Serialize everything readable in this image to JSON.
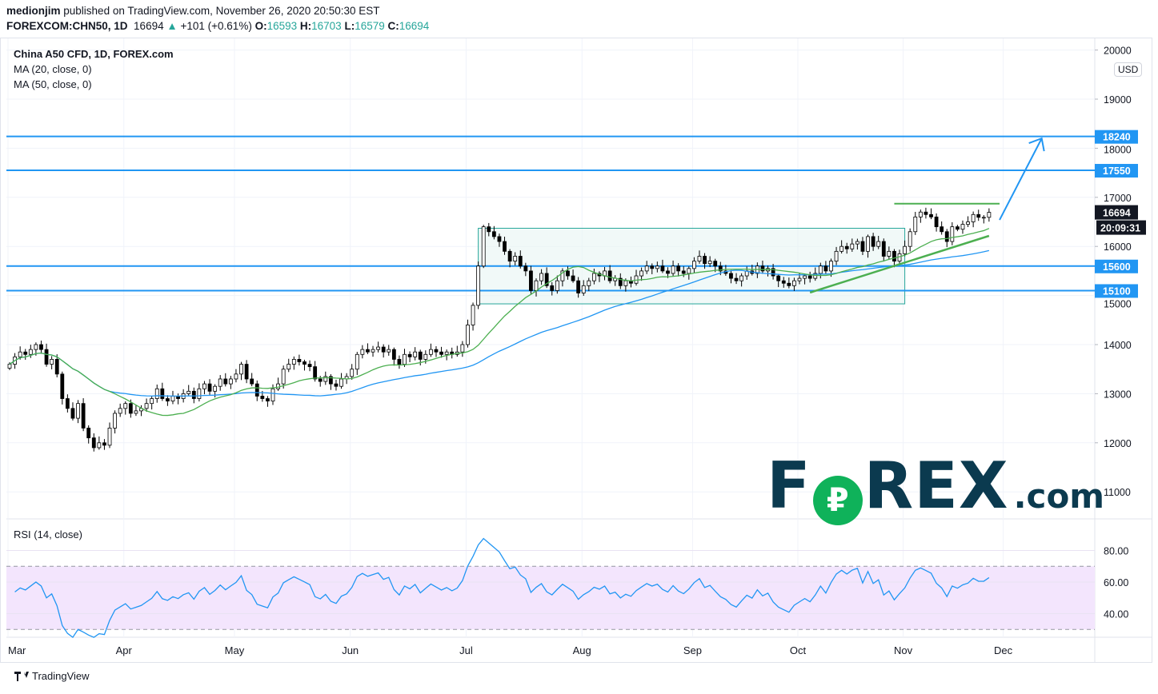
{
  "header": {
    "author": "medionjim",
    "published_text": "published on TradingView.com, November 26, 2020 20:50:30 EST",
    "symbol": "FOREXCOM:CHN50, 1D",
    "last": "16694",
    "change": "+101 (+0.61%)",
    "o_label": "O:",
    "o": "16593",
    "h_label": "H:",
    "h": "16703",
    "l_label": "L:",
    "l": "16579",
    "c_label": "C:",
    "c": "16694"
  },
  "legend": {
    "title": "China A50 CFD, 1D, FOREX.com",
    "ma20": "MA (20, close, 0)",
    "ma50": "MA (50, close, 0)",
    "rsi": "RSI (14, close)"
  },
  "currency": "USD",
  "countdown": "20:09:31",
  "footer": {
    "brand": "TradingView"
  },
  "watermark": {
    "f": "F",
    "o": "₽",
    "rex": "REX",
    "com": ".com"
  },
  "colors": {
    "up_body": "#ffffff",
    "down_body": "#000000",
    "ma20": "#4caf50",
    "ma50": "#2196f3",
    "hline": "#2196f3",
    "rsi_line": "#2196f3",
    "rsi_band": "#f3e5fd",
    "box_fill": "#e8f5f3",
    "box_stroke": "#26a69a",
    "last_price_bg": "#131722",
    "logo_dark": "#0b3a4f",
    "logo_green": "#0fb25a"
  },
  "chart_data": {
    "type": "candlestick",
    "price_axis": {
      "ticks": [
        11000,
        12000,
        13000,
        14000,
        15000,
        16000,
        17000,
        18000,
        19000,
        20000
      ],
      "visible_range": [
        10500,
        20000
      ]
    },
    "rsi_axis": {
      "ticks": [
        "40.00",
        "60.00",
        "80.00"
      ],
      "band": [
        30,
        70
      ],
      "range": [
        20,
        95
      ]
    },
    "time_axis": [
      {
        "label": "Mar",
        "bar": 0
      },
      {
        "label": "Apr",
        "bar": 22
      },
      {
        "label": "May",
        "bar": 43
      },
      {
        "label": "Jun",
        "bar": 65
      },
      {
        "label": "Jul",
        "bar": 87
      },
      {
        "label": "Aug",
        "bar": 109
      },
      {
        "label": "Sep",
        "bar": 130
      },
      {
        "label": "Oct",
        "bar": 150
      },
      {
        "label": "Nov",
        "bar": 170
      },
      {
        "label": "Dec",
        "bar": 189
      }
    ],
    "closes": [
      13600,
      13750,
      13850,
      13800,
      13900,
      14000,
      13900,
      13600,
      13700,
      13400,
      12900,
      12700,
      12500,
      12800,
      12300,
      12100,
      11900,
      12000,
      11950,
      12300,
      12600,
      12700,
      12800,
      12600,
      12650,
      12700,
      12800,
      12900,
      13100,
      12900,
      12850,
      12950,
      12900,
      13000,
      13050,
      12900,
      13100,
      13200,
      13050,
      13150,
      13300,
      13200,
      13300,
      13400,
      13600,
      13300,
      13200,
      12950,
      12900,
      12850,
      13100,
      13200,
      13500,
      13600,
      13700,
      13650,
      13600,
      13550,
      13300,
      13250,
      13350,
      13200,
      13150,
      13300,
      13350,
      13500,
      13800,
      13900,
      13850,
      13900,
      13950,
      13850,
      13900,
      13700,
      13600,
      13800,
      13750,
      13850,
      13700,
      13800,
      13900,
      13850,
      13800,
      13850,
      13800,
      13850,
      14000,
      14400,
      14800,
      15600,
      16400,
      16300,
      16200,
      16100,
      15900,
      15700,
      15800,
      15600,
      15500,
      15100,
      15300,
      15450,
      15200,
      15100,
      15300,
      15500,
      15400,
      15300,
      15050,
      15200,
      15300,
      15450,
      15400,
      15500,
      15300,
      15350,
      15200,
      15300,
      15250,
      15400,
      15500,
      15600,
      15550,
      15600,
      15500,
      15450,
      15600,
      15500,
      15450,
      15550,
      15700,
      15800,
      15650,
      15700,
      15600,
      15500,
      15450,
      15350,
      15300,
      15400,
      15500,
      15450,
      15600,
      15500,
      15550,
      15400,
      15300,
      15250,
      15200,
      15300,
      15350,
      15400,
      15350,
      15450,
      15600,
      15500,
      15700,
      15900,
      16000,
      15950,
      16050,
      16100,
      15900,
      16200,
      16000,
      16100,
      15800,
      15900,
      15700,
      15850,
      16000,
      16300,
      16600,
      16700,
      16650,
      16600,
      16400,
      16300,
      16100,
      16400,
      16350,
      16450,
      16500,
      16650,
      16593,
      16593,
      16694
    ],
    "last_open": 16593,
    "horizontal_levels": [
      18240,
      17550,
      15600,
      15100
    ],
    "last_price_label": "16694",
    "level_labels": [
      "18240",
      "17550",
      "15600",
      "15100"
    ],
    "range_box": {
      "from_bar": 89,
      "to_bar": 170,
      "top": 16370,
      "bottom": 14830
    },
    "resistance_line": {
      "from_bar": 168,
      "to_bar": 188,
      "price": 16870
    },
    "trend_line": {
      "from_bar": 152,
      "from_price": 15060,
      "to_bar": 186,
      "to_price": 16215
    },
    "projection_arrow": {
      "from_bar": 188,
      "from_price": 16540,
      "to_bar": 196,
      "to_price": 18200
    }
  }
}
